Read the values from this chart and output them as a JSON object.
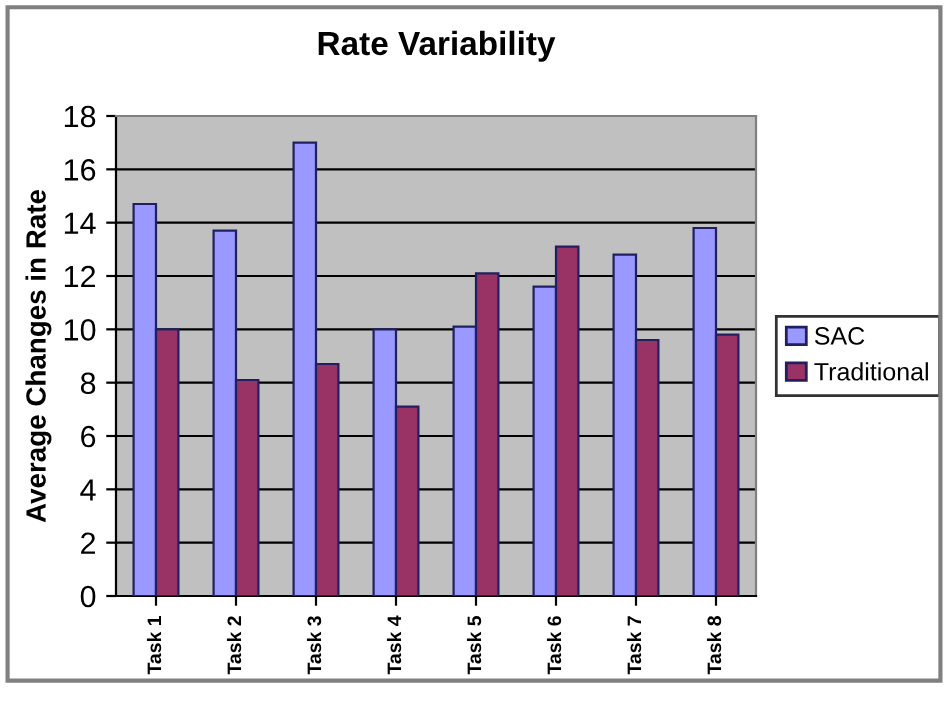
{
  "chart_data": {
    "type": "bar",
    "title": "Rate Variability",
    "ylabel": "Average Changes in Rate",
    "categories": [
      "Task 1",
      "Task 2",
      "Task 3",
      "Task 4",
      "Task 5",
      "Task 6",
      "Task 7",
      "Task 8"
    ],
    "series": [
      {
        "name": "SAC",
        "color": "#9999ff",
        "values": [
          14.7,
          13.7,
          17.0,
          10.0,
          10.1,
          11.6,
          12.8,
          13.8
        ]
      },
      {
        "name": "Traditional",
        "color": "#993366",
        "values": [
          10.0,
          8.1,
          8.7,
          7.1,
          12.1,
          13.1,
          9.6,
          9.8
        ]
      }
    ],
    "ylim": [
      0,
      18
    ],
    "yticks": [
      0,
      2,
      4,
      6,
      8,
      10,
      12,
      14,
      16,
      18
    ],
    "grid": "y",
    "legend": "right"
  }
}
